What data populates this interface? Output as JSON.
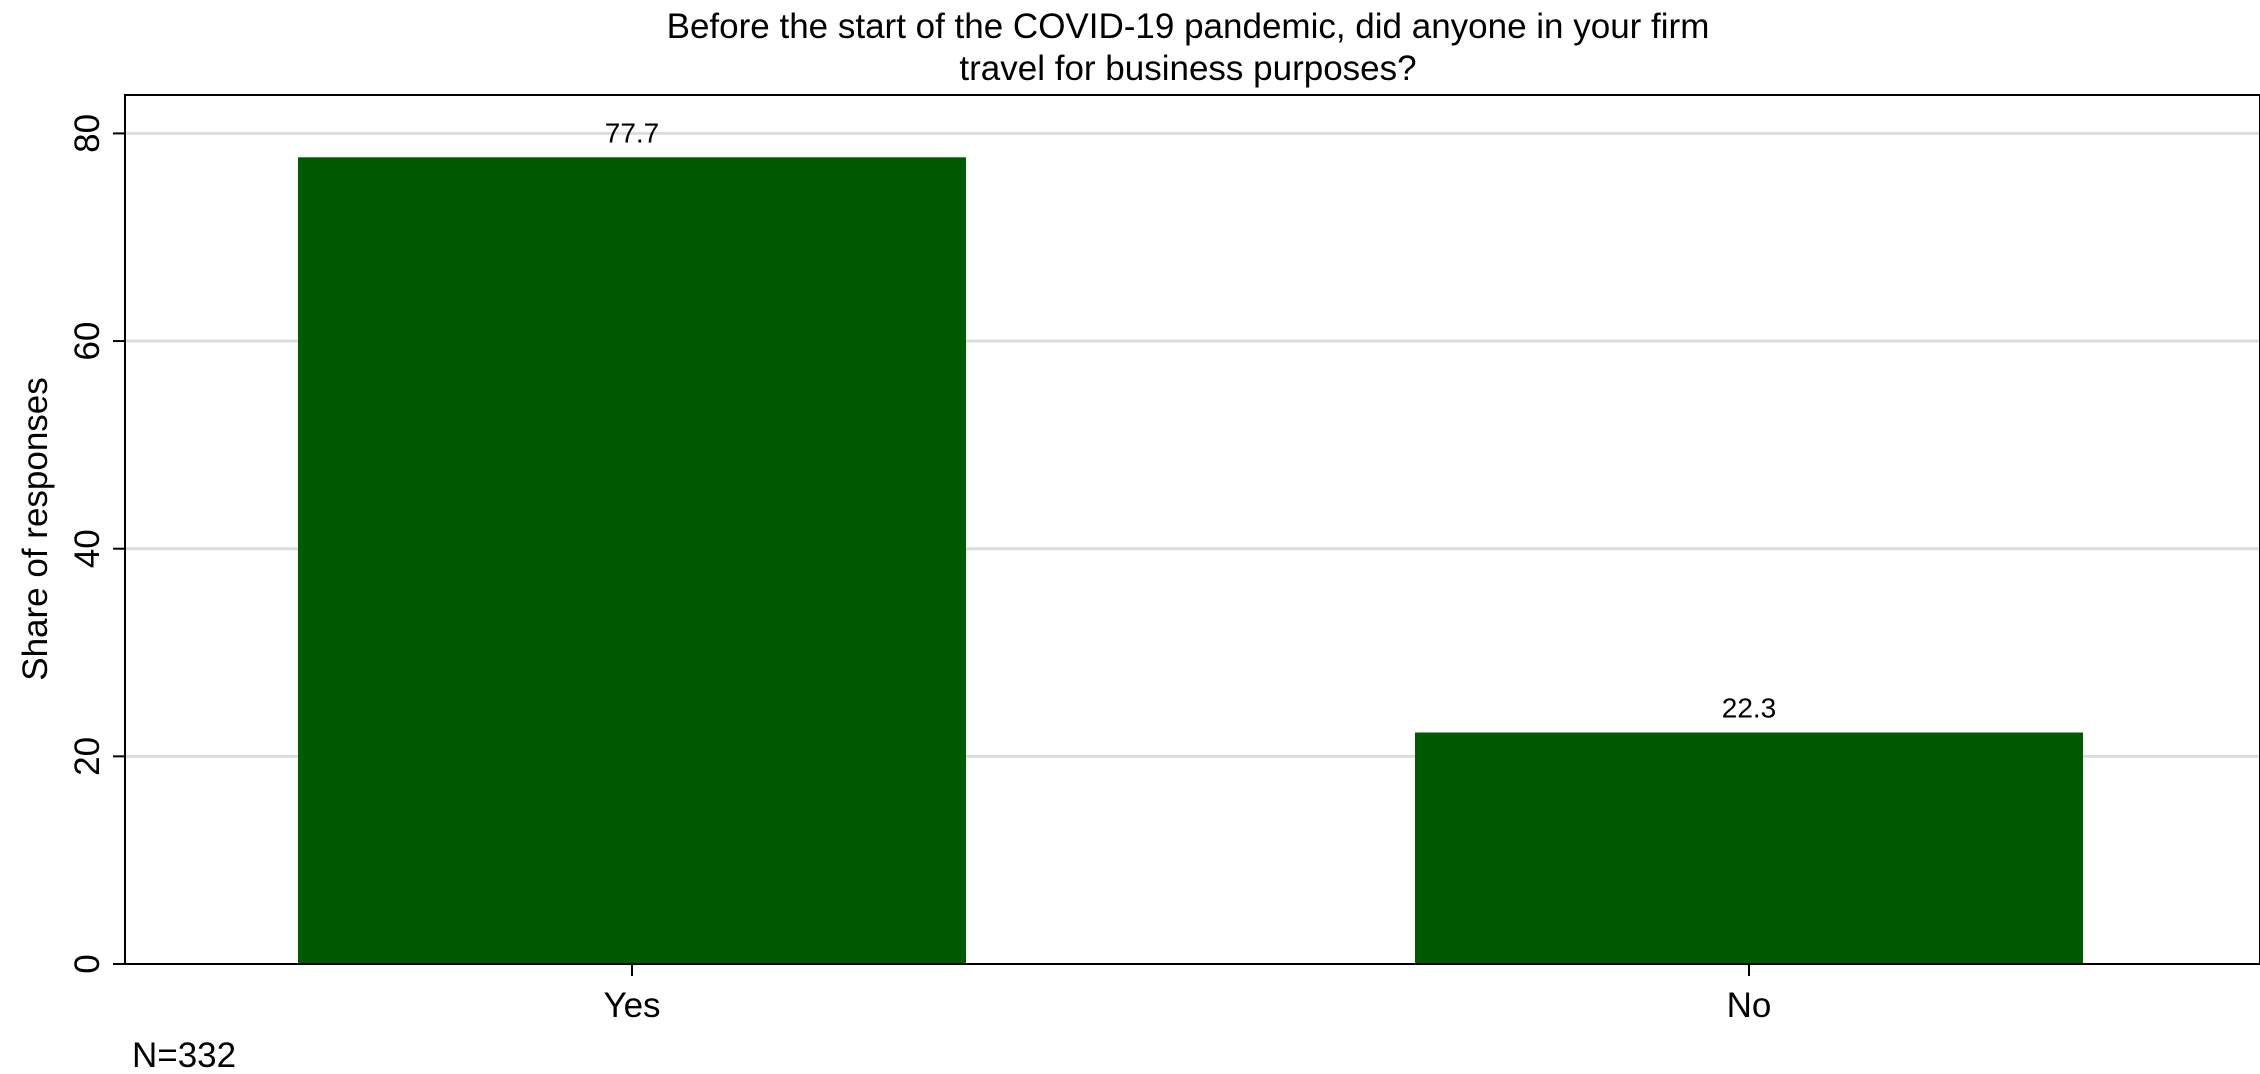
{
  "chart_data": {
    "type": "bar",
    "title": [
      "Before the start of the COVID-19 pandemic, did anyone in your firm",
      "travel for business purposes?"
    ],
    "ylabel": "Share of responses",
    "xlabel": "",
    "categories": [
      "Yes",
      "No"
    ],
    "values": [
      77.7,
      22.3
    ],
    "value_labels": [
      "77.7",
      "22.3"
    ],
    "ylim": [
      0,
      83.7
    ],
    "yticks": [
      0,
      20,
      40,
      60,
      80
    ],
    "ytick_labels": [
      "0",
      "20",
      "40",
      "60",
      "80"
    ],
    "grid": true,
    "bar_color": "#005a00",
    "grid_color": "#dcdcdc",
    "note": "N=332"
  }
}
